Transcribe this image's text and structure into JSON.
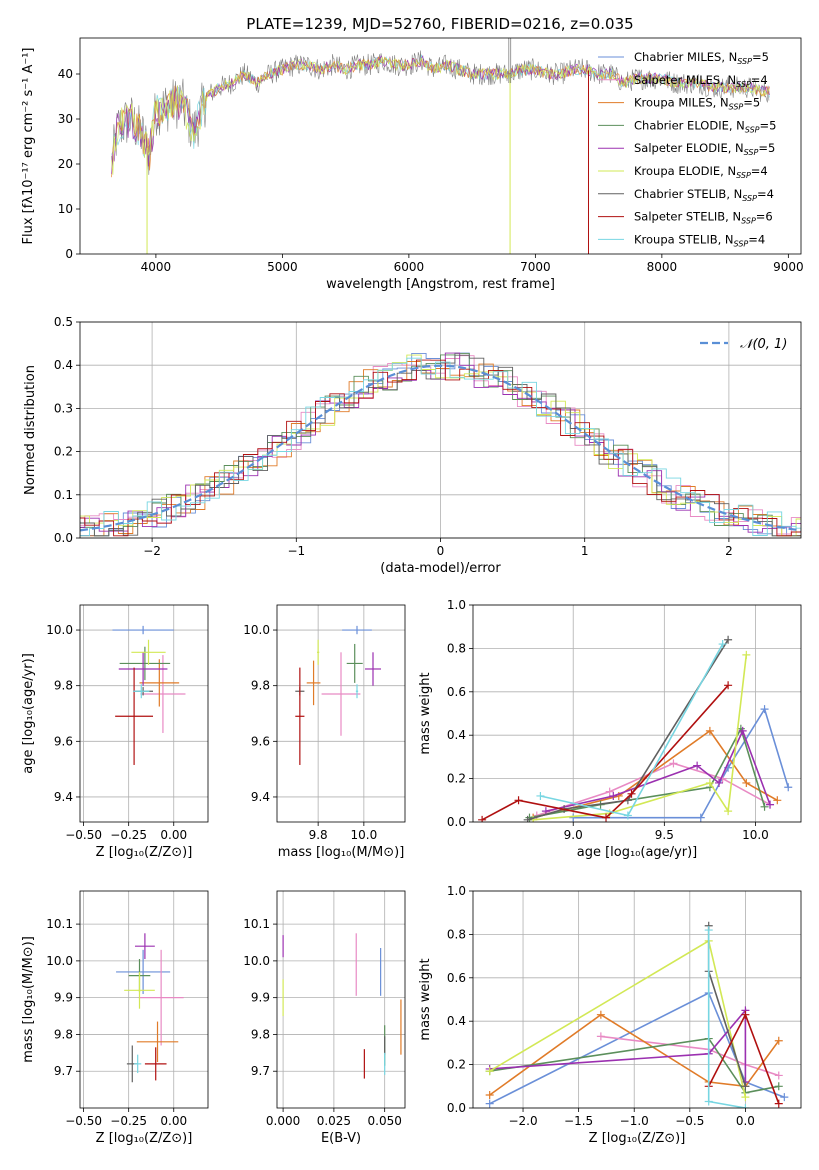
{
  "figure": {
    "title": "PLATE=1239, MJD=52760, FIBERID=0216, z=0.035"
  },
  "colors": {
    "spectrum": "#808080",
    "series": [
      "#6a8fd8",
      "#e88ac4",
      "#e07b28",
      "#5b8f5b",
      "#9b30b0",
      "#d2e855",
      "#606060",
      "#b01010",
      "#77d6e2"
    ],
    "grid": "#b0b0b0",
    "normal_curve": "#5a8fd6"
  },
  "chart_data": [
    {
      "type": "line",
      "name": "spectrum",
      "xlabel": "wavelength [Angstrom, rest frame]",
      "ylabel": "Flux [fλ10⁻¹⁷ erg cm⁻² s⁻¹ A⁻¹]",
      "xlim": [
        3400,
        9100
      ],
      "ylim": [
        0,
        48
      ],
      "xticks": [
        4000,
        5000,
        6000,
        7000,
        8000,
        9000
      ],
      "yticks": [
        0,
        10,
        20,
        30,
        40
      ],
      "grid": false,
      "legend": "top-right",
      "series": [
        {
          "name": "Chabrier MILES, N",
          "sub": "SSP",
          "suffix": "=5"
        },
        {
          "name": "Salpeter MILES, N",
          "sub": "SSP",
          "suffix": "=4"
        },
        {
          "name": "Kroupa MILES, N",
          "sub": "SSP",
          "suffix": "=5"
        },
        {
          "name": "Chabrier ELODIE, N",
          "sub": "SSP",
          "suffix": "=5"
        },
        {
          "name": "Salpeter ELODIE, N",
          "sub": "SSP",
          "suffix": "=5"
        },
        {
          "name": "Kroupa ELODIE, N",
          "sub": "SSP",
          "suffix": "=4"
        },
        {
          "name": "Chabrier STELIB, N",
          "sub": "SSP",
          "suffix": "=4"
        },
        {
          "name": "Salpeter STELIB, N",
          "sub": "SSP",
          "suffix": "=6"
        },
        {
          "name": "Kroupa STELIB, N",
          "sub": "SSP",
          "suffix": "=4"
        }
      ],
      "x": [
        3650,
        3700,
        3800,
        3900,
        3950,
        4000,
        4100,
        4200,
        4300,
        4400,
        4500,
        4600,
        4700,
        4800,
        4900,
        5000,
        5100,
        5200,
        5300,
        5400,
        5500,
        5600,
        5700,
        5800,
        5900,
        6000,
        6100,
        6200,
        6300,
        6400,
        6500,
        6600,
        6700,
        6800,
        6900,
        7000,
        7100,
        7200,
        7300,
        7400,
        7500,
        7600,
        7700,
        7800,
        7900,
        8000,
        8100,
        8200,
        8300,
        8400,
        8500,
        8600,
        8700,
        8800,
        8850
      ],
      "y": [
        20,
        28,
        30,
        26,
        22,
        32,
        33,
        34,
        27,
        35,
        37,
        38,
        40,
        38,
        40,
        41,
        42,
        42,
        41,
        42,
        41,
        42,
        42,
        43,
        42,
        42,
        43,
        41,
        42,
        41,
        40,
        40,
        40,
        40,
        41,
        41,
        40,
        40,
        41,
        41,
        40,
        40,
        38,
        39,
        39,
        39,
        38,
        38,
        38,
        37,
        37,
        37,
        37,
        36,
        36
      ],
      "drops": [
        {
          "x": 3930,
          "to": 0,
          "series": 5
        },
        {
          "x": 6800,
          "to": 0,
          "series": 5
        },
        {
          "x": 7420,
          "to": 0,
          "series": 7
        }
      ]
    },
    {
      "type": "histogram",
      "name": "residuals",
      "xlabel": "(data-model)/error",
      "ylabel": "Normed distribution",
      "xlim": [
        -2.5,
        2.5
      ],
      "ylim": [
        0,
        0.5
      ],
      "xticks": [
        -2,
        -1,
        0,
        1,
        2
      ],
      "xticklabels": [
        "−2",
        "−1",
        "0",
        "1",
        "2"
      ],
      "yticks": [
        0.0,
        0.1,
        0.2,
        0.3,
        0.4,
        0.5
      ],
      "yticklabels": [
        "0.0",
        "0.1",
        "0.2",
        "0.3",
        "0.4",
        "0.5"
      ],
      "grid": true,
      "legend": "top-right",
      "legend_label": "𝒩(0, 1)",
      "bin_width": 0.1,
      "normal": {
        "mu": 0,
        "sigma": 1
      }
    },
    {
      "type": "scatter",
      "name": "age-vs-Z",
      "xlabel": "Z [log₁₀(Z/Z⊙)]",
      "ylabel": "age  [log₁₀(age/yr)]",
      "xlim": [
        -0.52,
        0.19
      ],
      "ylim": [
        9.31,
        10.09
      ],
      "xticks": [
        -0.5,
        -0.25,
        0.0
      ],
      "xticklabels": [
        "−0.50",
        "−0.25",
        "0.00"
      ],
      "yticks": [
        9.4,
        9.6,
        9.8,
        10.0
      ],
      "yticklabels": [
        "9.4",
        "9.6",
        "9.8",
        "10.0"
      ],
      "grid": true,
      "points": [
        {
          "s": 0,
          "x": -0.17,
          "y": 10.0,
          "xe": 0.34,
          "ye": 0.03
        },
        {
          "s": 1,
          "x": -0.06,
          "y": 9.77,
          "xe": 0.25,
          "ye": 0.28
        },
        {
          "s": 2,
          "x": -0.08,
          "y": 9.81,
          "xe": 0.22,
          "ye": 0.17
        },
        {
          "s": 3,
          "x": -0.16,
          "y": 9.88,
          "xe": 0.28,
          "ye": 0.12
        },
        {
          "s": 4,
          "x": -0.17,
          "y": 9.86,
          "xe": 0.27,
          "ye": 0.12
        },
        {
          "s": 5,
          "x": -0.14,
          "y": 9.92,
          "xe": 0.19,
          "ye": 0.09
        },
        {
          "s": 6,
          "x": -0.17,
          "y": 9.78,
          "xe": 0.11,
          "ye": 0.03
        },
        {
          "s": 7,
          "x": -0.22,
          "y": 9.69,
          "xe": 0.21,
          "ye": 0.35
        },
        {
          "s": 8,
          "x": -0.18,
          "y": 9.78,
          "xe": 0.09,
          "ye": 0.05
        }
      ]
    },
    {
      "type": "scatter",
      "name": "age-vs-mass",
      "xlabel": "mass [log₁₀(M/M⊙)]",
      "ylabel": "",
      "xlim": [
        9.62,
        10.18
      ],
      "ylim": [
        9.31,
        10.09
      ],
      "xticks": [
        9.8,
        10.0
      ],
      "xticklabels": [
        "9.8",
        "10.0"
      ],
      "yticks": [
        9.4,
        9.6,
        9.8,
        10.0
      ],
      "yticklabels": [
        "9.4",
        "9.6",
        "9.8",
        "10.0"
      ],
      "grid": true,
      "points": [
        {
          "s": 0,
          "x": 9.97,
          "y": 10.0,
          "xe": 0.13,
          "ye": 0.03
        },
        {
          "s": 1,
          "x": 9.9,
          "y": 9.77,
          "xe": 0.17,
          "ye": 0.3
        },
        {
          "s": 2,
          "x": 9.78,
          "y": 9.81,
          "xe": 0.06,
          "ye": 0.16
        },
        {
          "s": 3,
          "x": 9.96,
          "y": 9.88,
          "xe": 0.07,
          "ye": 0.14
        },
        {
          "s": 4,
          "x": 10.04,
          "y": 9.86,
          "xe": 0.07,
          "ye": 0.12
        },
        {
          "s": 5,
          "x": 9.8,
          "y": 9.92,
          "xe": 0.01,
          "ye": 0.09
        },
        {
          "s": 6,
          "x": 9.72,
          "y": 9.78,
          "xe": 0.04,
          "ye": 0.03
        },
        {
          "s": 7,
          "x": 9.72,
          "y": 9.69,
          "xe": 0.04,
          "ye": 0.35
        },
        {
          "s": 8,
          "x": 9.97,
          "y": 9.78,
          "xe": 0.01,
          "ye": 0.05
        }
      ]
    },
    {
      "type": "line",
      "name": "weight-vs-age",
      "xlabel": "age  [log₁₀(age/yr)]",
      "ylabel": "mass weight",
      "xlim": [
        8.45,
        10.25
      ],
      "ylim": [
        0,
        1.0
      ],
      "xticks": [
        9.0,
        9.5,
        10.0
      ],
      "xticklabels": [
        "9.0",
        "9.5",
        "10.0"
      ],
      "yticks": [
        0.0,
        0.2,
        0.4,
        0.6,
        0.8,
        1.0
      ],
      "yticklabels": [
        "0.0",
        "0.2",
        "0.4",
        "0.6",
        "0.8",
        "1.0"
      ],
      "grid": true,
      "series": [
        {
          "s": 0,
          "x": [
            9.0,
            9.7,
            9.85,
            10.05,
            10.18
          ],
          "y": [
            0.02,
            0.02,
            0.25,
            0.52,
            0.16
          ]
        },
        {
          "s": 1,
          "x": [
            8.8,
            9.2,
            9.55,
            9.82,
            10.08
          ],
          "y": [
            0.03,
            0.14,
            0.27,
            0.2,
            0.08
          ]
        },
        {
          "s": 2,
          "x": [
            8.78,
            9.25,
            9.75,
            9.95,
            10.12
          ],
          "y": [
            0.02,
            0.12,
            0.42,
            0.18,
            0.1
          ]
        },
        {
          "s": 3,
          "x": [
            8.76,
            9.15,
            9.75,
            9.92,
            10.05
          ],
          "y": [
            0.02,
            0.08,
            0.16,
            0.43,
            0.07
          ]
        },
        {
          "s": 4,
          "x": [
            8.85,
            9.22,
            9.68,
            9.8,
            9.93,
            10.08
          ],
          "y": [
            0.05,
            0.12,
            0.26,
            0.18,
            0.42,
            0.08
          ]
        },
        {
          "s": 5,
          "x": [
            8.78,
            9.2,
            9.75,
            9.85,
            9.95
          ],
          "y": [
            0.01,
            0.04,
            0.18,
            0.05,
            0.77
          ]
        },
        {
          "s": 6,
          "x": [
            8.75,
            8.95,
            9.3,
            9.85
          ],
          "y": [
            0.01,
            0.06,
            0.1,
            0.84
          ]
        },
        {
          "s": 7,
          "x": [
            8.5,
            8.7,
            9.18,
            9.32,
            9.85
          ],
          "y": [
            0.01,
            0.1,
            0.02,
            0.13,
            0.63
          ]
        },
        {
          "s": 8,
          "x": [
            8.82,
            9.3,
            9.82
          ],
          "y": [
            0.12,
            0.03,
            0.82
          ]
        }
      ]
    },
    {
      "type": "scatter",
      "name": "mass-vs-Z",
      "xlabel": "Z [log₁₀(Z/Z⊙)]",
      "ylabel": "mass [log₁₀(M/M⊙)]",
      "xlim": [
        -0.52,
        0.19
      ],
      "ylim": [
        9.6,
        10.19
      ],
      "xticks": [
        -0.5,
        -0.25,
        0.0
      ],
      "xticklabels": [
        "−0.50",
        "−0.25",
        "0.00"
      ],
      "yticks": [
        9.7,
        9.8,
        9.9,
        10.0,
        10.1
      ],
      "yticklabels": [
        "9.7",
        "9.8",
        "9.9",
        "10.0",
        "10.1"
      ],
      "grid": true,
      "points": [
        {
          "s": 0,
          "x": -0.17,
          "y": 9.97,
          "xe": 0.3,
          "ye": 0.12
        },
        {
          "s": 1,
          "x": -0.07,
          "y": 9.9,
          "xe": 0.25,
          "ye": 0.26
        },
        {
          "s": 2,
          "x": -0.09,
          "y": 9.78,
          "xe": 0.23,
          "ye": 0.11
        },
        {
          "s": 3,
          "x": -0.19,
          "y": 9.96,
          "xe": 0.12,
          "ye": 0.09
        },
        {
          "s": 4,
          "x": -0.16,
          "y": 10.04,
          "xe": 0.11,
          "ye": 0.07
        },
        {
          "s": 5,
          "x": -0.19,
          "y": 9.92,
          "xe": 0.17,
          "ye": 0.1
        },
        {
          "s": 6,
          "x": -0.23,
          "y": 9.72,
          "xe": 0.06,
          "ye": 0.1
        },
        {
          "s": 7,
          "x": -0.1,
          "y": 9.72,
          "xe": 0.12,
          "ye": 0.09
        },
        {
          "s": 8,
          "x": -0.2,
          "y": 9.72,
          "xe": 0.04,
          "ye": 0.05
        }
      ]
    },
    {
      "type": "scatter",
      "name": "mass-vs-EBV",
      "xlabel": "E(B-V)",
      "ylabel": "",
      "xlim": [
        -0.003,
        0.06
      ],
      "ylim": [
        9.6,
        10.19
      ],
      "xticks": [
        0.0,
        0.025,
        0.05
      ],
      "xticklabels": [
        "0.000",
        "0.025",
        "0.050"
      ],
      "yticks": [
        9.7,
        9.8,
        9.9,
        10.0,
        10.1
      ],
      "yticklabels": [
        "9.7",
        "9.8",
        "9.9",
        "10.0",
        "10.1"
      ],
      "grid": true,
      "points": [
        {
          "s": 0,
          "x": 0.048,
          "y": 9.97,
          "xe": 0.0,
          "ye": 0.13
        },
        {
          "s": 1,
          "x": 0.036,
          "y": 9.99,
          "xe": 0.0,
          "ye": 0.17
        },
        {
          "s": 2,
          "x": 0.058,
          "y": 9.82,
          "xe": 0.0,
          "ye": 0.15
        },
        {
          "s": 3,
          "x": 0.05,
          "y": 9.77,
          "xe": 0.0,
          "ye": 0.11
        },
        {
          "s": 4,
          "x": 0.0,
          "y": 10.04,
          "xe": 0.0,
          "ye": 0.06
        },
        {
          "s": 5,
          "x": 0.0,
          "y": 9.9,
          "xe": 0.0,
          "ye": 0.1
        },
        {
          "s": 6,
          "x": 0.05,
          "y": 9.77,
          "xe": 0.0,
          "ye": 0.05
        },
        {
          "s": 7,
          "x": 0.04,
          "y": 9.72,
          "xe": 0.0,
          "ye": 0.08
        },
        {
          "s": 8,
          "x": 0.05,
          "y": 9.72,
          "xe": 0.0,
          "ye": 0.06
        }
      ]
    },
    {
      "type": "line",
      "name": "weight-vs-Z",
      "xlabel": "Z [log₁₀(Z/Z⊙)]",
      "ylabel": "mass weight",
      "xlim": [
        -2.45,
        0.5
      ],
      "ylim": [
        0,
        1.0
      ],
      "xticks": [
        -2.0,
        -1.5,
        -1.0,
        -0.5,
        0.0
      ],
      "xticklabels": [
        "−2.0",
        "−1.5",
        "−1.0",
        "−0.5",
        "0.0"
      ],
      "yticks": [
        0.0,
        0.2,
        0.4,
        0.6,
        0.8,
        1.0
      ],
      "yticklabels": [
        "0.0",
        "0.2",
        "0.4",
        "0.6",
        "0.8",
        "1.0"
      ],
      "grid": true,
      "series": [
        {
          "s": 0,
          "x": [
            -2.3,
            -0.33,
            0.0,
            0.35
          ],
          "y": [
            0.02,
            0.53,
            0.12,
            0.05
          ]
        },
        {
          "s": 1,
          "x": [
            -1.3,
            -0.33,
            0.0,
            0.3
          ],
          "y": [
            0.33,
            0.27,
            0.2,
            0.15
          ]
        },
        {
          "s": 2,
          "x": [
            -2.3,
            -1.3,
            -0.33,
            0.0,
            0.3
          ],
          "y": [
            0.06,
            0.43,
            0.12,
            0.1,
            0.31
          ]
        },
        {
          "s": 3,
          "x": [
            -2.3,
            -0.33,
            0.0,
            0.3
          ],
          "y": [
            0.17,
            0.32,
            0.07,
            0.1
          ]
        },
        {
          "s": 4,
          "x": [
            -2.3,
            -0.33,
            0.0,
            0.0
          ],
          "y": [
            0.18,
            0.25,
            0.45,
            0.12
          ]
        },
        {
          "s": 5,
          "x": [
            -2.3,
            -0.33,
            0.0
          ],
          "y": [
            0.17,
            0.77,
            0.05
          ]
        },
        {
          "s": 6,
          "x": [
            -0.33,
            -0.33,
            0.0
          ],
          "y": [
            0.84,
            0.63,
            0.1
          ]
        },
        {
          "s": 7,
          "x": [
            -0.33,
            0.0,
            0.3
          ],
          "y": [
            0.1,
            0.43,
            0.02
          ]
        },
        {
          "s": 8,
          "x": [
            -0.33,
            -0.33,
            0.0
          ],
          "y": [
            0.82,
            0.03,
            0.0
          ]
        }
      ]
    }
  ]
}
